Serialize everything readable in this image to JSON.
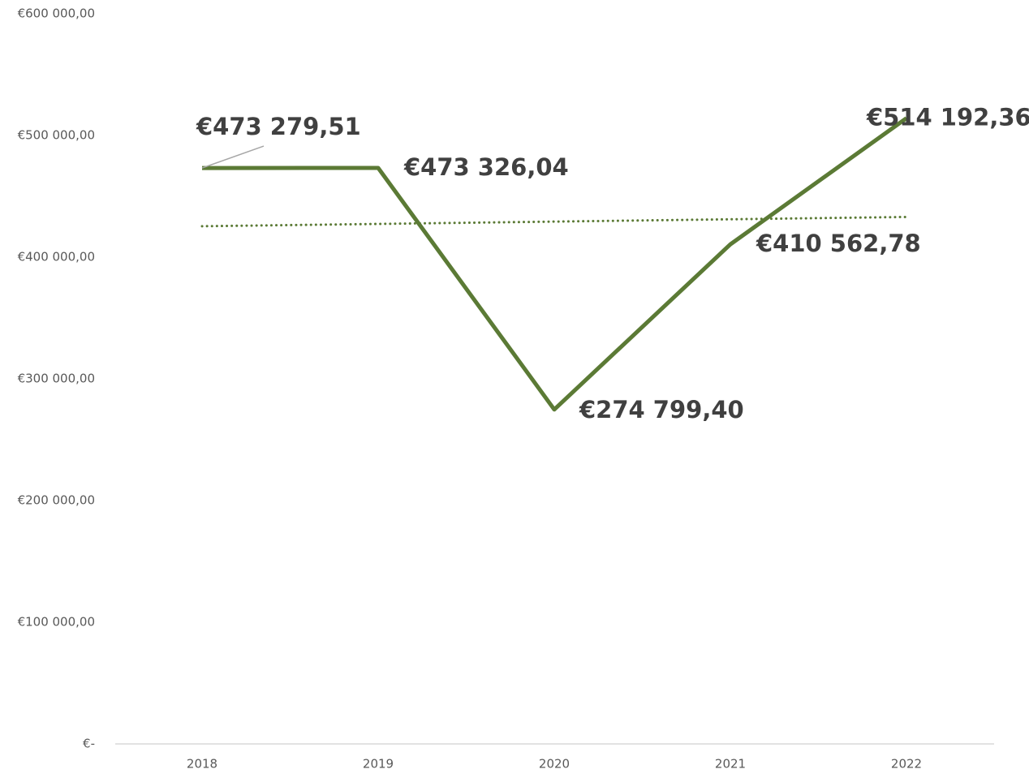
{
  "chart_data": {
    "type": "line",
    "categories": [
      "2018",
      "2019",
      "2020",
      "2021",
      "2022"
    ],
    "series": [
      {
        "color": "#5b7a35",
        "values": [
          473279.51,
          473326.04,
          274799.4,
          410562.78,
          514192.36
        ],
        "value_labels": [
          "€473 279,51",
          "€473 326,04",
          "€274 799,40",
          "€410 562,78",
          "€514 192,36"
        ]
      }
    ],
    "trendline": {
      "type": "linear",
      "style": "dotted",
      "color": "#5b7a35",
      "values": [
        425419.54,
        427325.78,
        429232.02,
        431138.26,
        433044.5
      ]
    },
    "ylim": [
      0,
      600000
    ],
    "yticks": [
      {
        "value": 0,
        "label": "€-"
      },
      {
        "value": 100000,
        "label": "€100 000,00"
      },
      {
        "value": 200000,
        "label": "€200 000,00"
      },
      {
        "value": 300000,
        "label": "€300 000,00"
      },
      {
        "value": 400000,
        "label": "€400 000,00"
      },
      {
        "value": 500000,
        "label": "€500 000,00"
      },
      {
        "value": 600000,
        "label": "€600 000,00"
      }
    ],
    "grid": false
  }
}
